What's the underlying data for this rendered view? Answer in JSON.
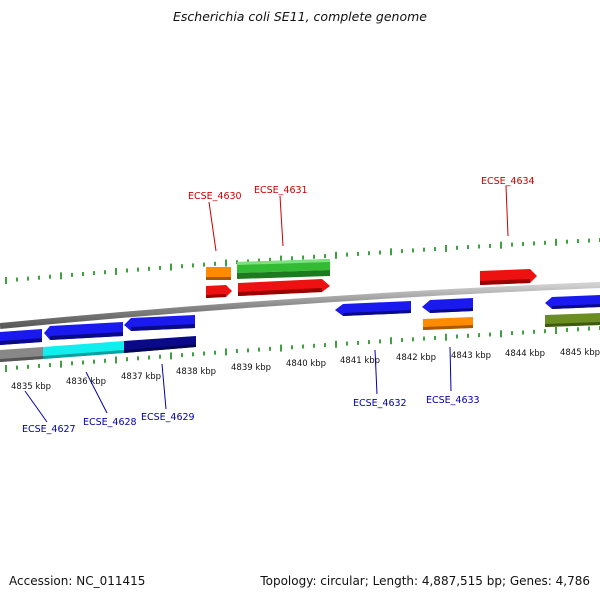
{
  "title": "Escherichia coli SE11, complete genome",
  "accession": {
    "label": "Accession:",
    "value": "NC_011415"
  },
  "summary": {
    "topology": "Topology: circular;",
    "length": "Length: 4,887,515 bp;",
    "genes": "Genes: 4,786"
  },
  "colors": {
    "backbone": "#8a8a8a",
    "tick": "#118811",
    "label_top": "#cc0000",
    "label_bottom": "#0000aa",
    "red": "#ee1111",
    "orange": "#ff8c00",
    "green": "#33bb33",
    "blue": "#1a1aee",
    "cyan": "#11eeee",
    "navy": "#0a0a88",
    "gray": "#888888",
    "olive": "#6b8e23"
  },
  "scale_labels": [
    "4835 kbp",
    "4836 kbp",
    "4837 kbp",
    "4838 kbp",
    "4839 kbp",
    "4840 kbp",
    "4841 kbp",
    "4842 kbp",
    "4843 kbp",
    "4844 kbp",
    "4845 kbp"
  ],
  "gene_labels_top": [
    "ECSE_4630",
    "ECSE_4631",
    "ECSE_4634"
  ],
  "gene_labels_bottom": [
    "ECSE_4627",
    "ECSE_4628",
    "ECSE_4629",
    "ECSE_4632",
    "ECSE_4633"
  ]
}
